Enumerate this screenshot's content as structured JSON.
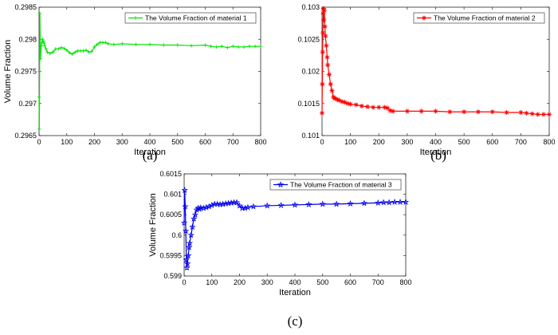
{
  "chart_data": [
    {
      "id": "a",
      "type": "line",
      "caption": "(a)",
      "xlabel": "Iteration",
      "ylabel": "Volume Fraction",
      "xlim": [
        0,
        800
      ],
      "ylim": [
        0.2965,
        0.2985
      ],
      "xticks": [
        "0",
        "100",
        "200",
        "300",
        "400",
        "500",
        "600",
        "700",
        "800"
      ],
      "yticks": [
        "0.2965",
        "0.297",
        "0.2975",
        "0.298",
        "0.2985"
      ],
      "legend_position": "top-right",
      "grid": false,
      "series": [
        {
          "name": "The Volume Fraction of material 1",
          "color": "#00e600",
          "marker": "plus",
          "x": [
            0,
            1,
            2,
            3,
            5,
            8,
            10,
            12,
            15,
            18,
            20,
            25,
            30,
            40,
            50,
            60,
            70,
            80,
            90,
            100,
            110,
            120,
            130,
            140,
            150,
            160,
            170,
            180,
            190,
            200,
            210,
            220,
            230,
            240,
            250,
            270,
            300,
            350,
            400,
            450,
            500,
            550,
            600,
            620,
            640,
            660,
            680,
            700,
            720,
            740,
            760,
            780,
            800
          ],
          "y": [
            0.2971,
            0.2966,
            0.2975,
            0.2984,
            0.2977,
            0.2979,
            0.29795,
            0.298,
            0.29797,
            0.29794,
            0.2979,
            0.29785,
            0.2978,
            0.29778,
            0.2978,
            0.29785,
            0.29785,
            0.29787,
            0.29786,
            0.29783,
            0.29779,
            0.29777,
            0.2978,
            0.29782,
            0.29782,
            0.29782,
            0.29783,
            0.2978,
            0.29781,
            0.29788,
            0.29792,
            0.29795,
            0.29795,
            0.29795,
            0.29793,
            0.29792,
            0.29793,
            0.29792,
            0.29792,
            0.29791,
            0.29791,
            0.2979,
            0.29791,
            0.29789,
            0.29788,
            0.29789,
            0.29787,
            0.29789,
            0.29788,
            0.29788,
            0.29789,
            0.29789,
            0.29789
          ]
        }
      ]
    },
    {
      "id": "b",
      "type": "line",
      "caption": "(b)",
      "xlabel": "Iteration",
      "ylabel": "",
      "xlim": [
        0,
        800
      ],
      "ylim": [
        0.101,
        0.103
      ],
      "xticks": [
        "0",
        "100",
        "200",
        "300",
        "400",
        "500",
        "600",
        "700",
        "800"
      ],
      "yticks": [
        "0.101",
        "0.1015",
        "0.102",
        "0.1025",
        "0.103"
      ],
      "legend_position": "top-right",
      "grid": false,
      "series": [
        {
          "name": "The Volume Fraction of material 2",
          "color": "#ff0000",
          "marker": "asterisk",
          "x": [
            0,
            1,
            2,
            3,
            4,
            5,
            6,
            8,
            10,
            12,
            15,
            18,
            20,
            25,
            30,
            35,
            40,
            45,
            50,
            55,
            60,
            70,
            80,
            90,
            100,
            120,
            140,
            160,
            180,
            200,
            220,
            230,
            240,
            250,
            300,
            350,
            400,
            450,
            500,
            550,
            600,
            650,
            700,
            720,
            740,
            760,
            780,
            800
          ],
          "y": [
            0.10135,
            0.1018,
            0.1023,
            0.1026,
            0.1029,
            0.10298,
            0.1028,
            0.10295,
            0.1027,
            0.10255,
            0.1024,
            0.10222,
            0.1021,
            0.10195,
            0.1018,
            0.1017,
            0.1016,
            0.10158,
            0.10157,
            0.10156,
            0.10155,
            0.10153,
            0.10152,
            0.1015,
            0.10149,
            0.10148,
            0.10146,
            0.10145,
            0.10144,
            0.10144,
            0.10144,
            0.10143,
            0.10139,
            0.10138,
            0.10138,
            0.10138,
            0.10138,
            0.10137,
            0.10137,
            0.10137,
            0.10137,
            0.10136,
            0.10136,
            0.10135,
            0.10134,
            0.10133,
            0.10133,
            0.10133
          ]
        }
      ]
    },
    {
      "id": "c",
      "type": "line",
      "caption": "(c)",
      "xlabel": "Iteration",
      "ylabel": "Volume Fraction",
      "xlim": [
        0,
        800
      ],
      "ylim": [
        0.599,
        0.6015
      ],
      "xticks": [
        "0",
        "100",
        "200",
        "300",
        "400",
        "500",
        "600",
        "700",
        "800"
      ],
      "yticks": [
        "0.599",
        "0.5995",
        "0.6",
        "0.6005",
        "0.601",
        "0.6015"
      ],
      "legend_position": "top-right",
      "grid": false,
      "series": [
        {
          "name": "The Volume Fraction of material 3",
          "color": "#0000ee",
          "marker": "pentagram",
          "x": [
            0,
            2,
            4,
            6,
            8,
            10,
            12,
            15,
            18,
            20,
            25,
            30,
            35,
            40,
            45,
            50,
            55,
            60,
            70,
            80,
            90,
            100,
            110,
            120,
            130,
            140,
            150,
            160,
            170,
            180,
            190,
            200,
            210,
            220,
            230,
            250,
            300,
            350,
            400,
            450,
            500,
            550,
            600,
            650,
            700,
            720,
            740,
            760,
            780,
            800
          ],
          "y": [
            0.6003,
            0.6011,
            0.6007,
            0.6001,
            0.5994,
            0.5992,
            0.5993,
            0.5995,
            0.5997,
            0.5998,
            0.6,
            0.6002,
            0.6004,
            0.6005,
            0.60062,
            0.60066,
            0.60064,
            0.60067,
            0.60066,
            0.60068,
            0.6007,
            0.60073,
            0.60076,
            0.60076,
            0.60075,
            0.60076,
            0.60077,
            0.60078,
            0.60079,
            0.6008,
            0.6008,
            0.60072,
            0.60066,
            0.60066,
            0.60068,
            0.6007,
            0.60072,
            0.60073,
            0.60074,
            0.60075,
            0.60076,
            0.60076,
            0.60077,
            0.60078,
            0.60079,
            0.6008,
            0.6008,
            0.60081,
            0.60081,
            0.60081
          ]
        }
      ]
    }
  ]
}
